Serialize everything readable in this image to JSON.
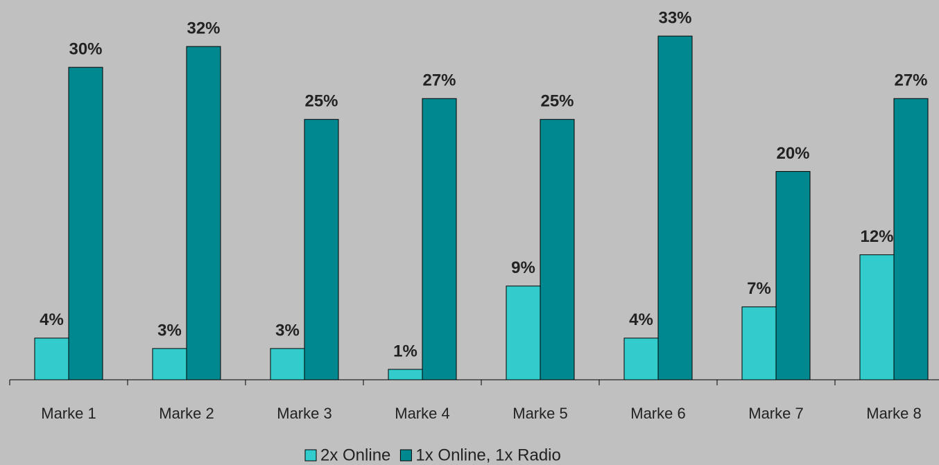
{
  "chart_data": {
    "type": "bar",
    "categories": [
      "Marke 1",
      "Marke 2",
      "Marke 3",
      "Marke 4",
      "Marke 5",
      "Marke 6",
      "Marke 7",
      "Marke 8"
    ],
    "series": [
      {
        "name": "2x Online",
        "color": "#33cccc",
        "values": [
          4,
          3,
          3,
          1,
          9,
          4,
          7,
          12
        ],
        "value_labels": [
          "4%",
          "3%",
          "3%",
          "1%",
          "9%",
          "4%",
          "7%",
          "12%"
        ]
      },
      {
        "name": "1x Online, 1x Radio",
        "color": "#008890",
        "values": [
          30,
          32,
          25,
          27,
          25,
          33,
          20,
          27
        ],
        "value_labels": [
          "30%",
          "32%",
          "25%",
          "27%",
          "25%",
          "33%",
          "20%",
          "27%"
        ]
      }
    ],
    "ylim": [
      0,
      35
    ],
    "legend": "bottom"
  }
}
